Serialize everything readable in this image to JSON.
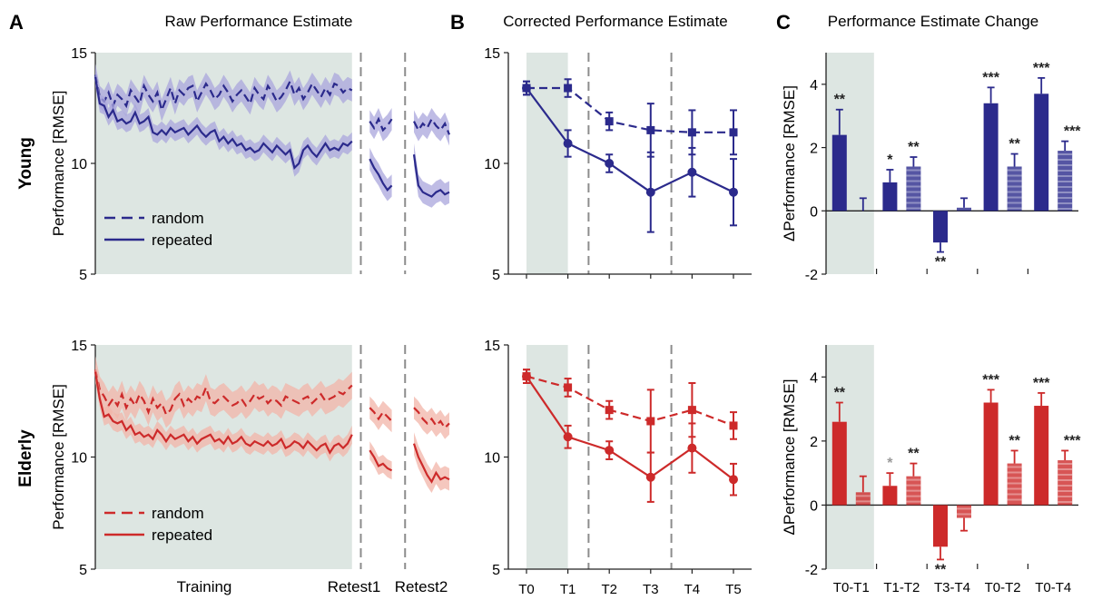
{
  "colors": {
    "young": "#2b2a8c",
    "elderly": "#cd2a2a",
    "young_band": "#a9a6dc",
    "elderly_band": "#f2b4a8",
    "shade": "#dde6e2",
    "dash": "#8c8c8c"
  },
  "panels": [
    {
      "letter": "A",
      "title": "Raw Performance Estimate"
    },
    {
      "letter": "B",
      "title": "Corrected Performance Estimate"
    },
    {
      "letter": "C",
      "title": "Performance Estimate Change"
    }
  ],
  "rows": [
    {
      "label": "Young"
    },
    {
      "label": "Elderly"
    }
  ],
  "a_xlabels": [
    "Training",
    "Retest1",
    "Retest2"
  ],
  "chart_data": [
    {
      "type": "line",
      "panel": "A",
      "group": "Young",
      "ylabel": "Performance [RMSE]",
      "ylim": [
        5,
        15
      ],
      "yticks": [
        5,
        10,
        15
      ],
      "xlim": [
        0,
        80
      ],
      "legend": [
        "random",
        "repeated"
      ],
      "legend_placement": "bottom-left",
      "shaded_range": [
        0,
        58
      ],
      "vlines": [
        60,
        70
      ],
      "series": [
        {
          "name": "random",
          "segment": "training",
          "x0": 0,
          "step": 1,
          "band": 0.5,
          "values": [
            14.0,
            13.0,
            12.8,
            13.2,
            12.6,
            13.1,
            12.9,
            12.6,
            13.3,
            13.0,
            12.7,
            13.5,
            13.1,
            12.8,
            13.2,
            12.4,
            12.9,
            13.4,
            12.7,
            13.3,
            13.1,
            13.4,
            13.5,
            12.8,
            13.2,
            13.6,
            13.3,
            12.9,
            13.1,
            13.5,
            13.2,
            12.8,
            13.1,
            13.3,
            13.0,
            12.7,
            13.4,
            13.1,
            12.9,
            13.5,
            13.2,
            12.8,
            13.0,
            13.3,
            13.7,
            13.1,
            13.4,
            12.9,
            13.2,
            13.6,
            13.3,
            13.0,
            13.4,
            13.1,
            13.6,
            13.5,
            13.2,
            13.4,
            13.3
          ]
        },
        {
          "name": "random",
          "segment": "retest1",
          "x0": 62,
          "step": 1,
          "band": 0.5,
          "values": [
            11.9,
            11.6,
            12.0,
            11.5,
            11.7,
            12.0
          ]
        },
        {
          "name": "random",
          "segment": "retest2",
          "x0": 72,
          "step": 1,
          "band": 0.5,
          "values": [
            11.9,
            11.5,
            11.8,
            11.6,
            12.0,
            11.7,
            11.5,
            11.8,
            11.3
          ]
        },
        {
          "name": "repeated",
          "segment": "training",
          "x0": 0,
          "step": 1,
          "band": 0.4,
          "values": [
            13.9,
            12.7,
            12.6,
            12.1,
            12.4,
            11.9,
            12.0,
            11.8,
            11.9,
            12.3,
            11.8,
            11.9,
            12.1,
            11.4,
            11.3,
            11.5,
            11.3,
            11.6,
            11.4,
            11.5,
            11.6,
            11.3,
            11.5,
            11.7,
            11.4,
            11.2,
            11.4,
            11.5,
            11.0,
            11.2,
            10.9,
            11.1,
            10.8,
            10.9,
            10.6,
            10.7,
            10.5,
            10.6,
            10.9,
            10.7,
            10.5,
            10.8,
            10.6,
            10.4,
            10.6,
            9.8,
            10.0,
            10.6,
            10.8,
            10.5,
            10.3,
            10.6,
            10.9,
            10.6,
            10.7,
            10.6,
            10.9,
            10.8,
            11.0
          ]
        },
        {
          "name": "repeated",
          "segment": "retest1",
          "x0": 62,
          "step": 1,
          "band": 0.5,
          "values": [
            10.2,
            9.8,
            9.5,
            9.1,
            8.8,
            9.0
          ]
        },
        {
          "name": "repeated",
          "segment": "retest2",
          "x0": 72,
          "step": 1,
          "band": 0.5,
          "values": [
            10.4,
            9.0,
            8.7,
            8.6,
            8.5,
            8.7,
            8.8,
            8.6,
            8.7
          ]
        }
      ]
    },
    {
      "type": "line",
      "panel": "B",
      "group": "Young",
      "ylim": [
        5,
        15
      ],
      "yticks": [
        5,
        10,
        15
      ],
      "categories": [
        "T0",
        "T1",
        "T2",
        "T3",
        "T4",
        "T5"
      ],
      "shaded_range": [
        "T0",
        "T1"
      ],
      "vlines_between": [
        [
          "T1",
          "T2"
        ],
        [
          "T3",
          "T4"
        ]
      ],
      "series": [
        {
          "name": "random",
          "values": [
            13.4,
            13.4,
            11.9,
            11.5,
            11.4,
            11.4
          ],
          "errors": [
            0.3,
            0.4,
            0.4,
            1.2,
            1.0,
            1.0
          ]
        },
        {
          "name": "repeated",
          "values": [
            13.4,
            10.9,
            10.0,
            8.7,
            9.6,
            8.7
          ],
          "errors": [
            0.3,
            0.6,
            0.4,
            1.8,
            1.1,
            1.5
          ]
        }
      ]
    },
    {
      "type": "bar",
      "panel": "C",
      "group": "Young",
      "ylabel": "ΔPerformance [RMSE]",
      "ylim": [
        -2,
        5
      ],
      "yticks": [
        -2,
        0,
        2,
        4
      ],
      "categories": [
        "T0-T1",
        "T1-T2",
        "T3-T4",
        "T0-T2",
        "T0-T4"
      ],
      "shaded_range": [
        "T0-T1"
      ],
      "series": [
        {
          "name": "repeated",
          "values": [
            2.4,
            0.9,
            -1.0,
            3.4,
            3.7
          ],
          "errors": [
            0.8,
            0.4,
            0.3,
            0.5,
            0.5
          ],
          "significance": [
            "**",
            "*",
            "**",
            "***",
            "***"
          ]
        },
        {
          "name": "random",
          "values": [
            0.0,
            1.4,
            0.1,
            1.4,
            1.9
          ],
          "errors": [
            0.4,
            0.3,
            0.3,
            0.4,
            0.3
          ],
          "significance": [
            "",
            "**",
            "",
            "**",
            "***"
          ]
        }
      ]
    },
    {
      "type": "line",
      "panel": "A",
      "group": "Elderly",
      "ylabel": "Performance [RMSE]",
      "ylim": [
        5,
        15
      ],
      "yticks": [
        5,
        10,
        15
      ],
      "xlim": [
        0,
        80
      ],
      "legend": [
        "random",
        "repeated"
      ],
      "legend_placement": "bottom-left",
      "shaded_range": [
        0,
        58
      ],
      "vlines": [
        60,
        70
      ],
      "series": [
        {
          "name": "random",
          "segment": "training",
          "x0": 0,
          "step": 1,
          "band": 0.6,
          "values": [
            13.9,
            13.0,
            12.7,
            12.3,
            12.6,
            12.3,
            12.8,
            12.2,
            12.6,
            12.3,
            12.8,
            12.5,
            12.0,
            12.6,
            12.2,
            12.4,
            11.9,
            12.1,
            12.6,
            12.8,
            12.3,
            12.6,
            12.4,
            12.7,
            12.6,
            13.1,
            12.5,
            12.4,
            12.6,
            12.7,
            12.5,
            12.3,
            12.4,
            12.6,
            12.3,
            12.5,
            12.8,
            12.6,
            12.7,
            12.4,
            12.6,
            12.5,
            12.3,
            12.7,
            12.6,
            12.5,
            12.4,
            12.6,
            12.7,
            12.4,
            12.6,
            12.8,
            12.5,
            12.6,
            12.7,
            12.9,
            12.8,
            13.0,
            13.2
          ]
        },
        {
          "name": "random",
          "segment": "retest1",
          "x0": 62,
          "step": 1,
          "band": 0.5,
          "values": [
            12.2,
            12.0,
            11.7,
            12.0,
            11.8,
            11.6
          ]
        },
        {
          "name": "random",
          "segment": "retest2",
          "x0": 72,
          "step": 1,
          "band": 0.5,
          "values": [
            12.2,
            12.0,
            11.7,
            11.5,
            11.7,
            11.4,
            11.6,
            11.3,
            11.5
          ]
        },
        {
          "name": "repeated",
          "segment": "training",
          "x0": 0,
          "step": 1,
          "band": 0.4,
          "values": [
            13.8,
            12.6,
            11.8,
            11.9,
            11.6,
            11.5,
            11.6,
            11.2,
            11.4,
            11.0,
            11.1,
            10.9,
            11.0,
            10.8,
            11.2,
            11.0,
            10.7,
            11.0,
            10.8,
            10.9,
            11.0,
            10.7,
            10.9,
            10.6,
            10.8,
            10.9,
            11.0,
            10.7,
            10.8,
            10.6,
            10.9,
            10.6,
            10.7,
            10.9,
            10.6,
            10.5,
            10.7,
            10.6,
            10.5,
            10.7,
            10.5,
            10.6,
            10.8,
            10.4,
            10.5,
            10.7,
            10.6,
            10.4,
            10.7,
            10.5,
            10.3,
            10.5,
            10.6,
            10.2,
            10.5,
            10.6,
            10.4,
            10.6,
            11.0
          ]
        },
        {
          "name": "repeated",
          "segment": "retest1",
          "x0": 62,
          "step": 1,
          "band": 0.4,
          "values": [
            10.3,
            10.0,
            9.6,
            9.7,
            9.5,
            9.4
          ]
        },
        {
          "name": "repeated",
          "segment": "retest2",
          "x0": 72,
          "step": 1,
          "band": 0.5,
          "values": [
            10.6,
            10.0,
            9.6,
            9.2,
            8.9,
            9.3,
            9.0,
            9.1,
            9.0
          ]
        }
      ]
    },
    {
      "type": "line",
      "panel": "B",
      "group": "Elderly",
      "ylim": [
        5,
        15
      ],
      "yticks": [
        5,
        10,
        15
      ],
      "categories": [
        "T0",
        "T1",
        "T2",
        "T3",
        "T4",
        "T5"
      ],
      "xlabel_ticks": [
        "T0",
        "T1",
        "T2",
        "T3",
        "T4",
        "T5"
      ],
      "shaded_range": [
        "T0",
        "T1"
      ],
      "vlines_between": [
        [
          "T1",
          "T2"
        ],
        [
          "T3",
          "T4"
        ]
      ],
      "series": [
        {
          "name": "random",
          "values": [
            13.6,
            13.1,
            12.1,
            11.6,
            12.1,
            11.4
          ],
          "errors": [
            0.3,
            0.4,
            0.4,
            1.4,
            1.2,
            0.6
          ]
        },
        {
          "name": "repeated",
          "values": [
            13.6,
            10.9,
            10.3,
            9.1,
            10.4,
            9.0
          ],
          "errors": [
            0.3,
            0.5,
            0.4,
            1.1,
            1.1,
            0.7
          ]
        }
      ]
    },
    {
      "type": "bar",
      "panel": "C",
      "group": "Elderly",
      "ylabel": "ΔPerformance [RMSE]",
      "ylim": [
        -2,
        5
      ],
      "yticks": [
        -2,
        0,
        2,
        4
      ],
      "categories": [
        "T0-T1",
        "T1-T2",
        "T3-T4",
        "T0-T2",
        "T0-T4"
      ],
      "shaded_range": [
        "T0-T1"
      ],
      "series": [
        {
          "name": "repeated",
          "values": [
            2.6,
            0.6,
            -1.3,
            3.2,
            3.1
          ],
          "errors": [
            0.6,
            0.4,
            0.4,
            0.4,
            0.4
          ],
          "significance": [
            "**",
            "*",
            "**",
            "***",
            "***"
          ]
        },
        {
          "name": "random",
          "values": [
            0.4,
            0.9,
            -0.4,
            1.3,
            1.4
          ],
          "errors": [
            0.5,
            0.4,
            0.4,
            0.4,
            0.3
          ],
          "significance": [
            "",
            "**",
            "",
            "**",
            "***"
          ]
        }
      ]
    }
  ]
}
